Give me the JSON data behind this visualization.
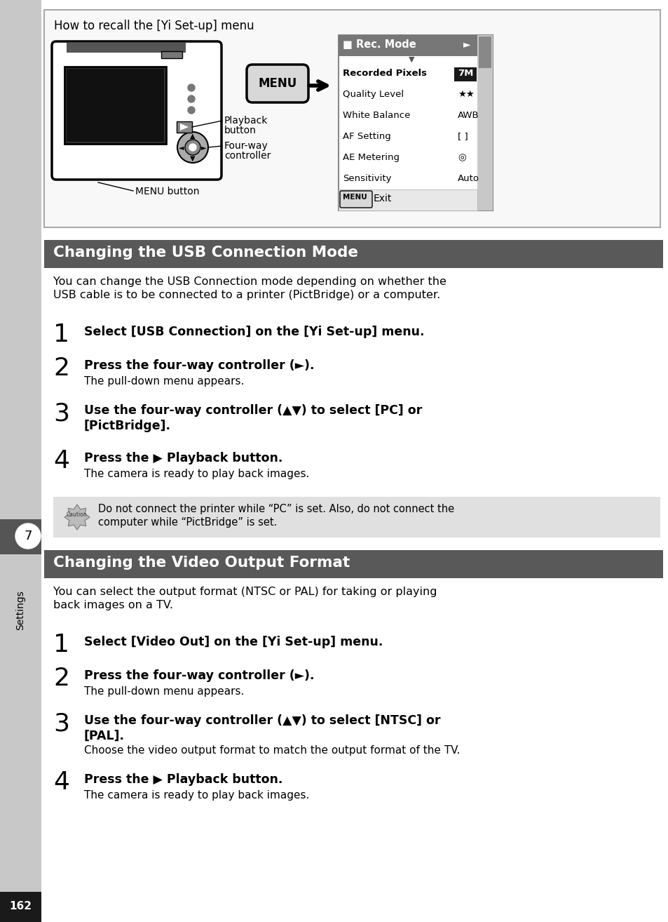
{
  "page_bg": "#ffffff",
  "left_bar_color": "#c8c8c8",
  "section1_title": "Changing the USB Connection Mode",
  "section1_bg": "#595959",
  "section1_text_color": "#ffffff",
  "section2_title": "Changing the Video Output Format",
  "section2_bg": "#595959",
  "section2_text_color": "#ffffff",
  "intro_box_title": "How to recall the [Yi Set-up] menu",
  "usb_intro": "You can change the USB Connection mode depending on whether the\nUSB cable is to be connected to a printer (PictBridge) or a computer.",
  "video_intro": "You can select the output format (NTSC or PAL) for taking or playing\nback images on a TV.",
  "usb_steps": [
    {
      "num": "1",
      "bold": "Select [USB Connection] on the [Yi Set-up] menu.",
      "sub": ""
    },
    {
      "num": "2",
      "bold": "Press the four-way controller (►).",
      "sub": "The pull-down menu appears."
    },
    {
      "num": "3",
      "bold": "Use the four-way controller (▲▼) to select [PC] or\n[PictBridge].",
      "sub": ""
    },
    {
      "num": "4",
      "bold": "Press the ▶ Playback button.",
      "sub": "The camera is ready to play back images."
    }
  ],
  "video_steps": [
    {
      "num": "1",
      "bold": "Select [Video Out] on the [Yi Set-up] menu.",
      "sub": ""
    },
    {
      "num": "2",
      "bold": "Press the four-way controller (►).",
      "sub": "The pull-down menu appears."
    },
    {
      "num": "3",
      "bold": "Use the four-way controller (▲▼) to select [NTSC] or\n[PAL].",
      "sub": "Choose the video output format to match the output format of the TV."
    },
    {
      "num": "4",
      "bold": "Press the ▶ Playback button.",
      "sub": "The camera is ready to play back images."
    }
  ],
  "caution_text": "Do not connect the printer while “PC” is set. Also, do not connect the\ncomputer while “PictBridge” is set.",
  "caution_bg": "#e0e0e0",
  "sidebar_number": "7",
  "sidebar_text": "Settings",
  "page_number": "162",
  "page_number_bg": "#1a1a1a",
  "page_number_text_color": "#ffffff",
  "menu_items": [
    {
      "label": "Recorded Pixels",
      "value": "7M",
      "val_bg": true
    },
    {
      "label": "Quality Level",
      "value": "★★",
      "val_bg": false
    },
    {
      "label": "White Balance",
      "value": "AWB",
      "val_bg": false
    },
    {
      "label": "AF Setting",
      "value": "[ ]",
      "val_bg": false
    },
    {
      "label": "AE Metering",
      "value": "◎",
      "val_bg": false
    },
    {
      "label": "Sensitivity",
      "value": "Auto",
      "val_bg": false
    }
  ]
}
